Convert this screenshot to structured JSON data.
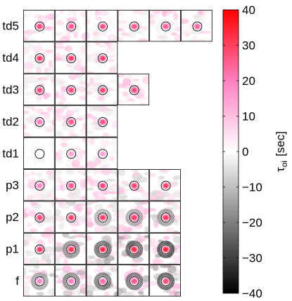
{
  "chart_data": {
    "type": "heatmap",
    "row_labels": [
      "td5",
      "td4",
      "td3",
      "td2",
      "td1",
      "p3",
      "p2",
      "p1",
      "f"
    ],
    "panels_per_row": [
      6,
      3,
      4,
      3,
      3,
      5,
      5,
      5,
      5
    ],
    "colorbar": {
      "min": -40,
      "max": 40,
      "ticks": [
        40,
        30,
        20,
        10,
        0,
        -10,
        -20,
        -30,
        -40
      ],
      "tick_labels": [
        "40",
        "30",
        "20",
        "10",
        "0",
        "−10",
        "−20",
        "−30",
        "−40"
      ],
      "label": "τ",
      "label_sub": "oi",
      "unit": "[sec]",
      "colormap": [
        "#000000",
        "#808080",
        "#ffffff",
        "#ff80c0",
        "#ff0000"
      ]
    },
    "panel_intensity": {
      "td5": [
        [
          28,
          -3
        ],
        [
          26,
          -3
        ],
        [
          27,
          -3
        ],
        [
          26,
          -4
        ],
        [
          25,
          -4
        ],
        [
          24,
          -4
        ]
      ],
      "td4": [
        [
          30,
          -4
        ],
        [
          30,
          -4
        ],
        [
          30,
          -4
        ]
      ],
      "td3": [
        [
          28,
          -5
        ],
        [
          28,
          -5
        ],
        [
          29,
          -5
        ],
        [
          28,
          -5
        ]
      ],
      "td2": [
        [
          20,
          -4
        ],
        [
          26,
          -6
        ],
        [
          27,
          -7
        ]
      ],
      "td1": [
        [
          0,
          -3
        ],
        [
          14,
          -3
        ],
        [
          14,
          -3
        ]
      ],
      "p3": [
        [
          18,
          -6
        ],
        [
          26,
          -10
        ],
        [
          28,
          -11
        ],
        [
          29,
          -12
        ],
        [
          30,
          -12
        ]
      ],
      "p2": [
        [
          28,
          -8
        ],
        [
          29,
          -12
        ],
        [
          30,
          -14
        ],
        [
          30,
          -16
        ],
        [
          31,
          -18
        ]
      ],
      "p1": [
        [
          30,
          -12
        ],
        [
          31,
          -20
        ],
        [
          33,
          -26
        ],
        [
          33,
          -28
        ],
        [
          34,
          -32
        ]
      ],
      "f": [
        [
          18,
          -16
        ],
        [
          20,
          -22
        ],
        [
          22,
          -24
        ],
        [
          26,
          -26
        ],
        [
          28,
          -30
        ]
      ]
    }
  }
}
